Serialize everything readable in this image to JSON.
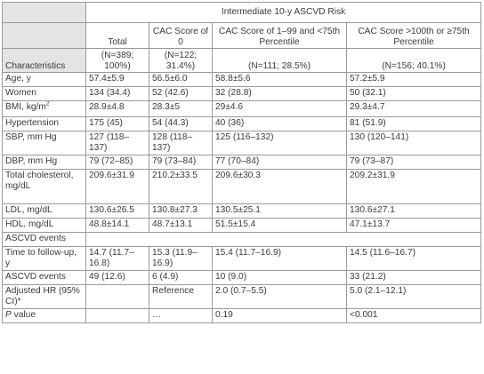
{
  "table": {
    "group_header": "Intermediate 10-y ASCVD Risk",
    "characteristics_label": "Characteristics",
    "columns": [
      {
        "title": "Total",
        "n": "(N=389; 100%)"
      },
      {
        "title": "CAC Score of 0",
        "n": "(N=122; 31.4%)"
      },
      {
        "title": "CAC Score of 1–99 and <75th Percentile",
        "n": "(N=111; 28.5%)"
      },
      {
        "title": "CAC Score >100th or ≥75th Percentile",
        "n": "(N=156; 40.1%)"
      }
    ],
    "rows": [
      {
        "label": "Age, y",
        "values": [
          "57.4±5.9",
          "56.5±6.0",
          "58.8±5.6",
          "57.2±5.9"
        ]
      },
      {
        "label": "Women",
        "values": [
          "134 (34.4)",
          "52 (42.6)",
          "32 (28.8)",
          "50 (32.1)"
        ]
      },
      {
        "label": "BMI, kg/m",
        "label_sup": "2",
        "values": [
          "28.9±4.8",
          "28.3±5",
          "29±4.6",
          "29.3±4.7"
        ]
      },
      {
        "label": "Hypertension",
        "values": [
          "175 (45)",
          "54 (44.3)",
          "40 (36)",
          "81 (51.9)"
        ]
      },
      {
        "label": "SBP, mm Hg",
        "values": [
          "127 (118–137)",
          "128 (118–137)",
          "125 (116–132)",
          "130 (120–141)"
        ]
      },
      {
        "label": "DBP, mm Hg",
        "values": [
          "79 (72–85)",
          "79 (73–84)",
          "77 (70–84)",
          "79 (73–87)"
        ]
      },
      {
        "label": "Total cholesterol, mg/dL",
        "values": [
          "209.6±31.9",
          "210.2±33.5",
          "209.6±30.3",
          "209.2±31.9"
        ]
      },
      {
        "label": "LDL, mg/dL",
        "values": [
          "130.6±26.5",
          "130.8±27.3",
          "130.5±25.1",
          "130.6±27.1"
        ]
      },
      {
        "label": "HDL, mg/dL",
        "values": [
          "48.8±14.1",
          "48.7±13.1",
          "51.5±15.4",
          "47.1±13.7"
        ]
      },
      {
        "label": "ASCVD events",
        "section": true,
        "values": []
      },
      {
        "label": "Time to follow-up, y",
        "values": [
          "14.7 (11.7–16.8)",
          "15.3 (11.9–16.9)",
          "15.4 (11.7–16.9)",
          "14.5 (11.6–16.7)"
        ]
      },
      {
        "label": "ASCVD events",
        "values": [
          "49 (12.6)",
          "6 (4.9)",
          "10 (9.0)",
          "33 (21.2)"
        ]
      },
      {
        "label": "Adjusted HR (95% CI)*",
        "values": [
          "",
          "Reference",
          "2.0 (0.7–5.5)",
          "5.0 (2.1–12.1)"
        ]
      },
      {
        "label_italic": "P",
        "label": " value",
        "values": [
          "",
          "…",
          "0.19",
          "<0.001"
        ]
      }
    ]
  }
}
